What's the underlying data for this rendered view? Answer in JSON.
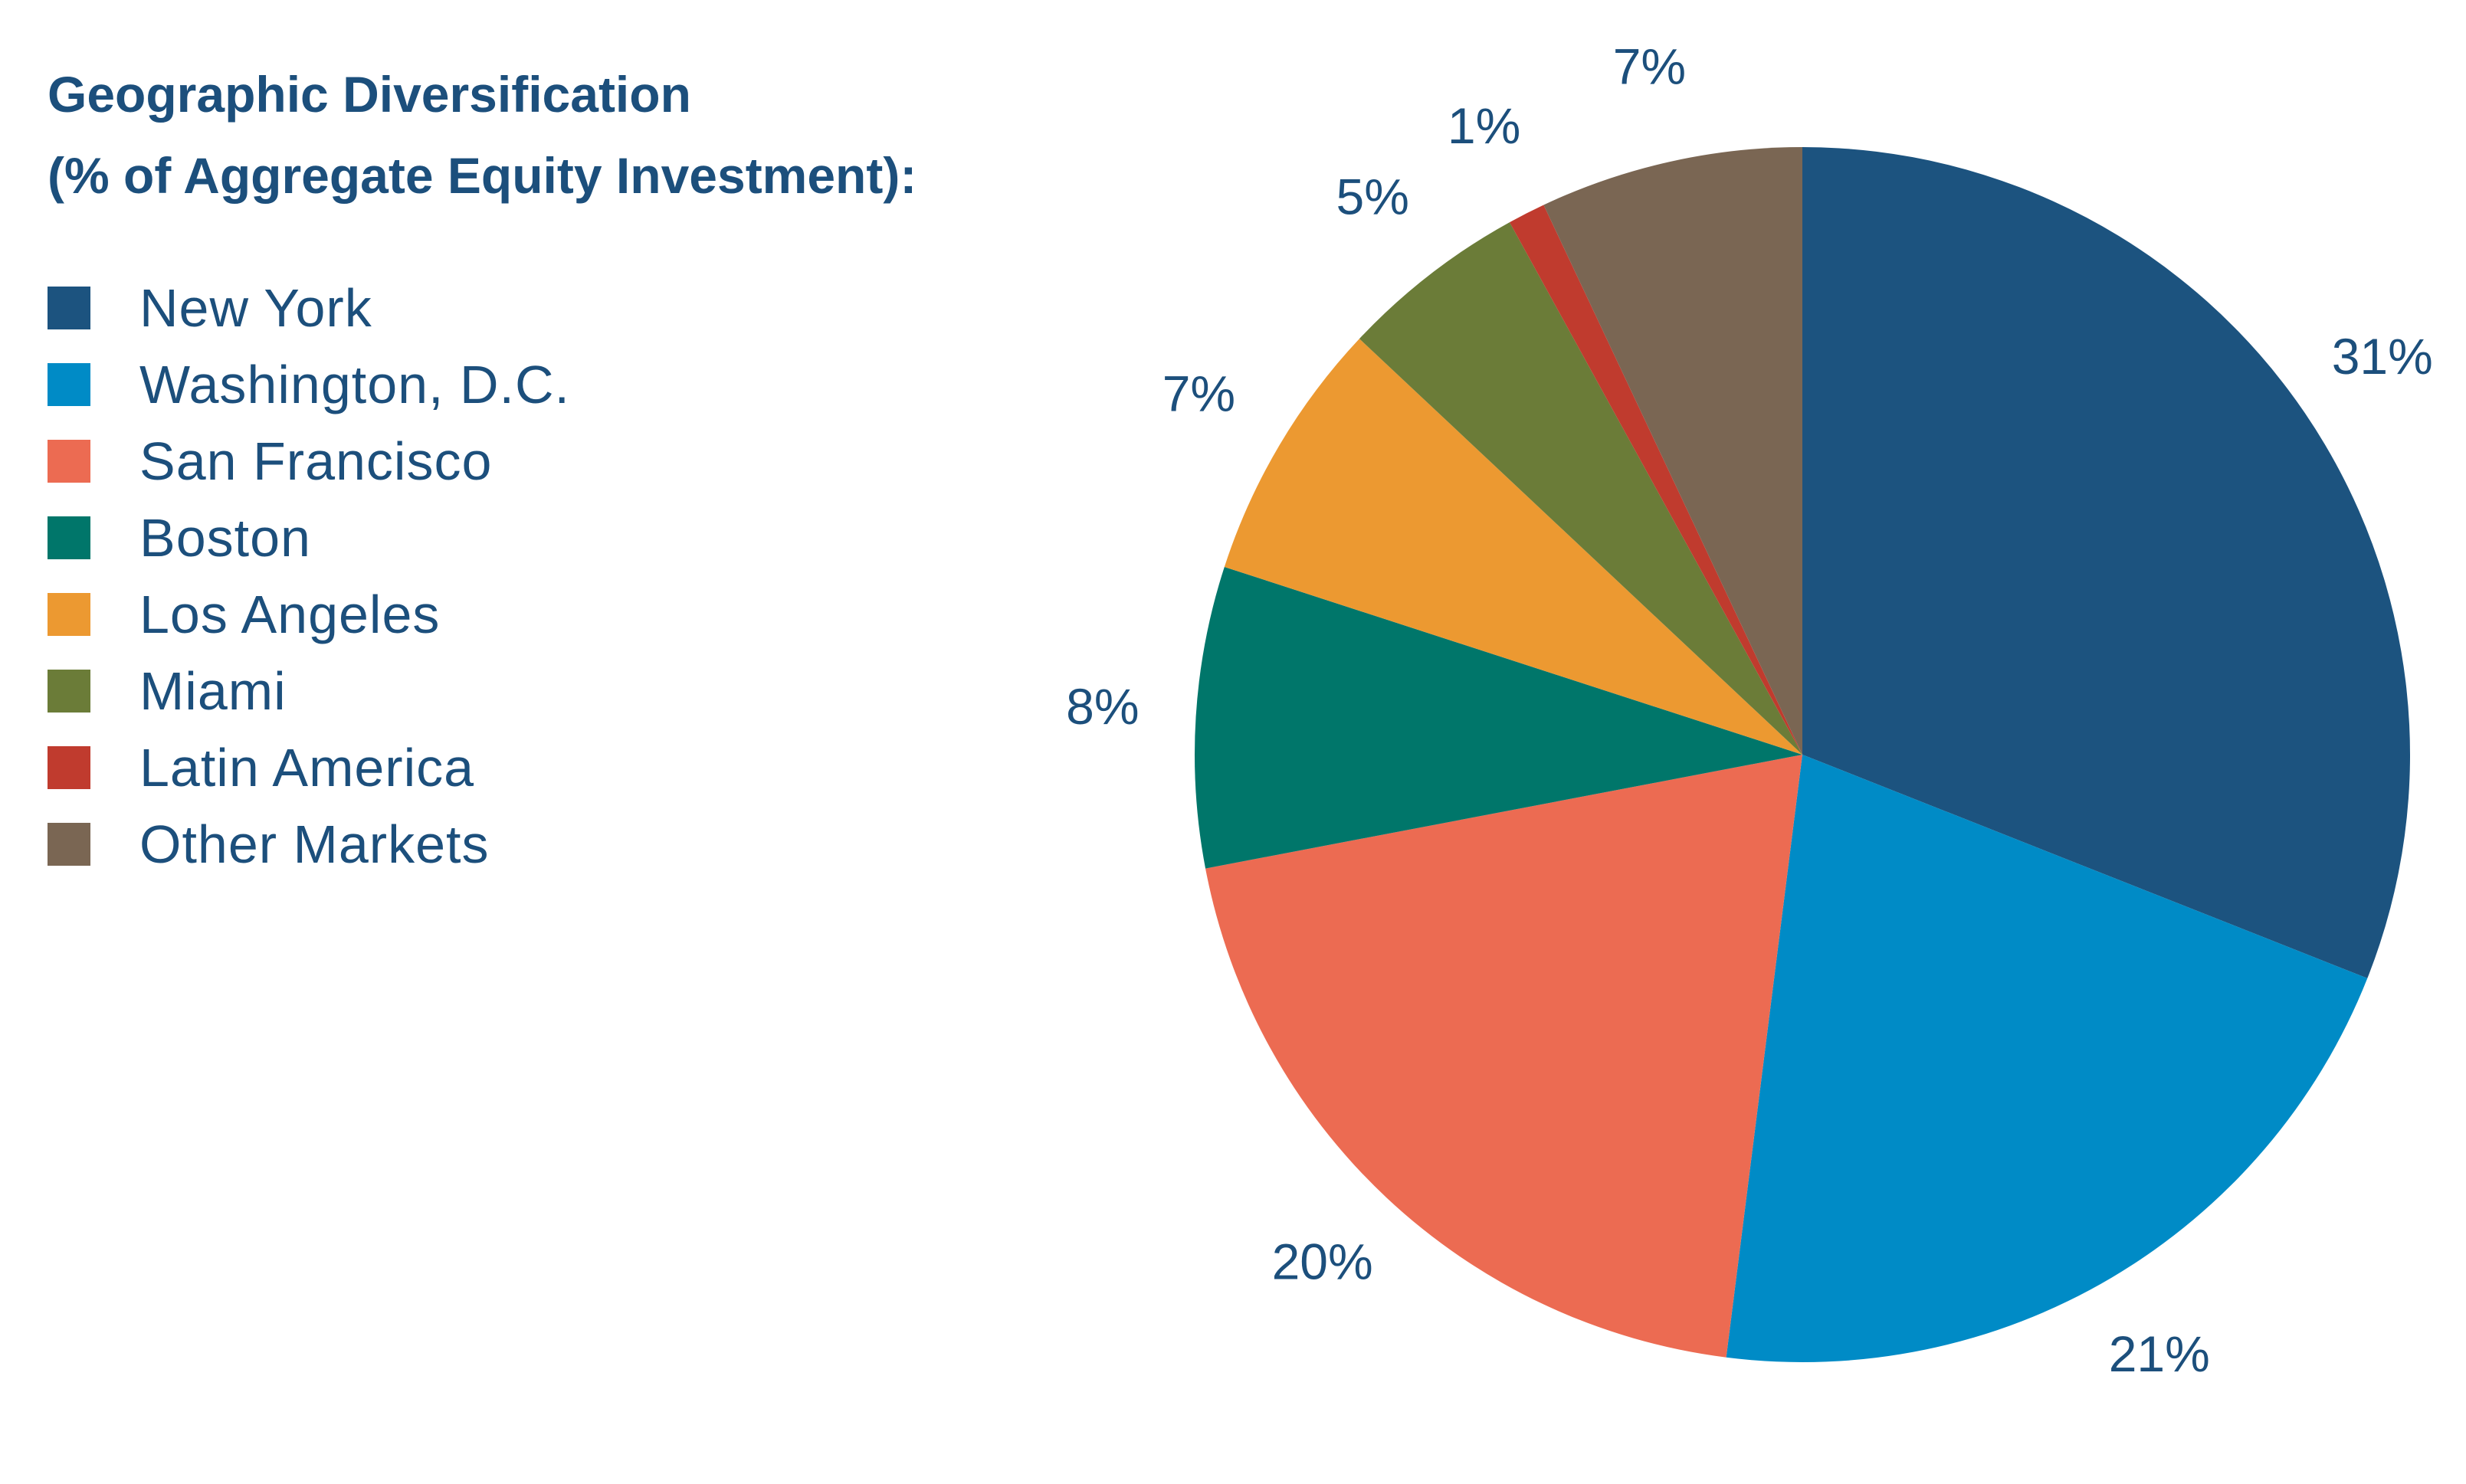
{
  "chart_data": {
    "type": "pie",
    "title_lines": [
      "Geographic Diversification",
      "(% of Aggregate Equity Investment):"
    ],
    "slices": [
      {
        "label": "New York",
        "value": 31,
        "value_label": "31%",
        "color": "#1c537f"
      },
      {
        "label": "Washington, D.C.",
        "value": 21,
        "value_label": "21%",
        "color": "#008bc6"
      },
      {
        "label": "San Francisco",
        "value": 20,
        "value_label": "20%",
        "color": "#ec6b52"
      },
      {
        "label": "Boston",
        "value": 8,
        "value_label": "8%",
        "color": "#00766a"
      },
      {
        "label": "Los Angeles",
        "value": 7,
        "value_label": "7%",
        "color": "#ec9931"
      },
      {
        "label": "Miami",
        "value": 5,
        "value_label": "5%",
        "color": "#6b7c38"
      },
      {
        "label": "Latin America",
        "value": 1,
        "value_label": "1%",
        "color": "#c03b2e"
      },
      {
        "label": "Other Markets",
        "value": 7,
        "value_label": "7%",
        "color": "#7a6653"
      }
    ],
    "legend_placement": "left"
  }
}
